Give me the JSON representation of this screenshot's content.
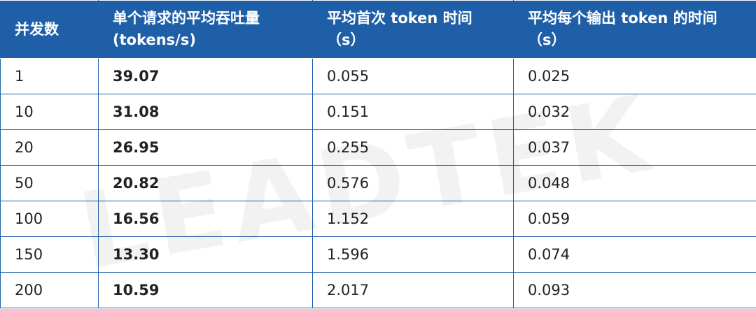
{
  "table": {
    "header": [
      "并发数",
      "单个请求的平均吞吐量\n(tokens/s)",
      "平均首次 token 时间\n（s）",
      "平均每个输出 token 的时间\n（s）"
    ],
    "rows": [
      [
        "1",
        "39.07",
        "0.055",
        "0.025"
      ],
      [
        "10",
        "31.08",
        "0.151",
        "0.032"
      ],
      [
        "20",
        "26.95",
        "0.255",
        "0.037"
      ],
      [
        "50",
        "20.82",
        "0.576",
        "0.048"
      ],
      [
        "100",
        "16.56",
        "1.152",
        "0.059"
      ],
      [
        "150",
        "13.30",
        "1.596",
        "0.074"
      ],
      [
        "200",
        "10.59",
        "2.017",
        "0.093"
      ]
    ]
  },
  "watermark": "LEADTEK"
}
